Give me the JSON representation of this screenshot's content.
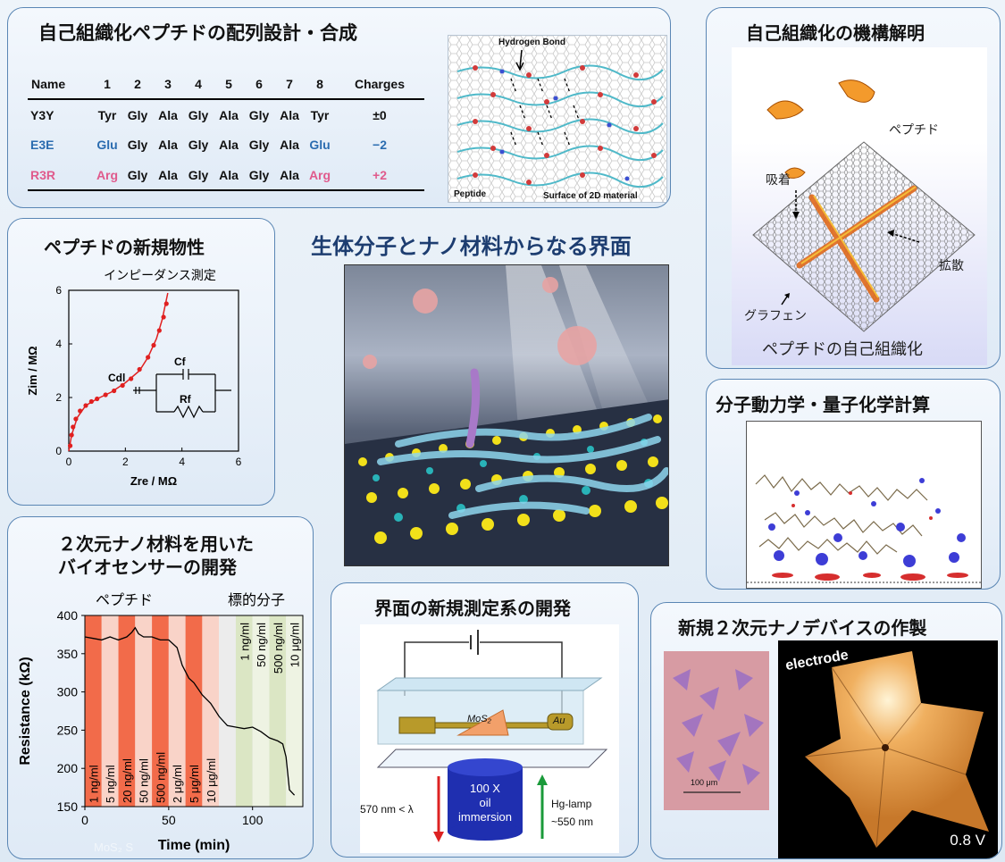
{
  "center_title": "生体分子とナノ材料からなる界面",
  "panel_synthesis": {
    "title": "自己組織化ペプチドの配列設計・合成",
    "table": {
      "headers": [
        "Name",
        "1",
        "2",
        "3",
        "4",
        "5",
        "6",
        "7",
        "8",
        "Charges"
      ],
      "rows": [
        {
          "name": "Y3Y",
          "seq": [
            "Tyr",
            "Gly",
            "Ala",
            "Gly",
            "Ala",
            "Gly",
            "Ala",
            "Tyr"
          ],
          "charge": "±0",
          "color": "#111111"
        },
        {
          "name": "E3E",
          "seq": [
            "Glu",
            "Gly",
            "Ala",
            "Gly",
            "Ala",
            "Gly",
            "Ala",
            "Glu"
          ],
          "charge": "−2",
          "color": "#2b6cb0"
        },
        {
          "name": "R3R",
          "seq": [
            "Arg",
            "Gly",
            "Ala",
            "Gly",
            "Ala",
            "Gly",
            "Ala",
            "Arg"
          ],
          "charge": "+2",
          "color": "#e05a8c"
        }
      ]
    },
    "image_labels": {
      "hbond": "Hydrogen Bond",
      "peptide": "Peptide",
      "surface": "Surface of 2D material"
    }
  },
  "panel_mechanism": {
    "title": "自己組織化の機構解明",
    "labels": {
      "peptide": "ペプチド",
      "adsorption": "吸着",
      "diffusion": "拡散",
      "graphene": "グラフェン",
      "caption": "ペプチドの自己組織化"
    }
  },
  "panel_properties": {
    "title": "ペプチドの新規物性",
    "chart_title": "インピーダンス測定",
    "circuit_labels": {
      "cf": "Cf",
      "cdl": "Cdl",
      "rf": "Rf"
    }
  },
  "panel_md": {
    "title": "分子動力学・量子化学計算"
  },
  "panel_biosensor": {
    "title_line1": "２次元ナノ材料を用いた",
    "title_line2": "バイオセンサーの開発",
    "header_peptide": "ペプチド",
    "header_target": "標的分子",
    "watermark": "MoS₂ S"
  },
  "panel_measure": {
    "title": "界面の新規測定系の開発",
    "labels": {
      "mos2": "MoS₂",
      "au": "Au",
      "objective": "100 X\noil\nimmersion",
      "obj1": "100 X",
      "obj2": "oil",
      "obj3": "immersion",
      "left_arrow": "570 nm < λ",
      "right_arrow1": "Hg-lamp",
      "right_arrow2": "~550 nm"
    }
  },
  "panel_device": {
    "title": "新規２次元ナノデバイスの作製",
    "scale_bar": "100 μm",
    "electrode": "electrode",
    "voltage": "0.8 V"
  },
  "chart_data": [
    {
      "type": "scatter",
      "title": "インピーダンス測定",
      "xlabel": "Zre / MΩ",
      "ylabel": "Zim / MΩ",
      "xlim": [
        0,
        6
      ],
      "ylim": [
        0,
        6
      ],
      "xticks": [
        "0",
        "2",
        "4",
        "6"
      ],
      "yticks": [
        "0",
        "2",
        "4",
        "6"
      ],
      "series": [
        {
          "kind": "points",
          "x": [
            0.05,
            0.1,
            0.15,
            0.25,
            0.4,
            0.6,
            0.8,
            1.0,
            1.3,
            1.6,
            1.9,
            2.2,
            2.5,
            2.8,
            3.0,
            3.2,
            3.35,
            3.45
          ],
          "y": [
            0.2,
            0.6,
            0.9,
            1.2,
            1.5,
            1.7,
            1.85,
            1.95,
            2.1,
            2.25,
            2.45,
            2.7,
            3.05,
            3.5,
            3.95,
            4.5,
            5.0,
            5.5
          ]
        },
        {
          "kind": "fit",
          "x": [
            0,
            0.1,
            0.3,
            0.6,
            1.0,
            1.5,
            2.0,
            2.5,
            2.8,
            3.1,
            3.3,
            3.5
          ],
          "y": [
            0,
            0.6,
            1.25,
            1.7,
            1.95,
            2.2,
            2.55,
            3.0,
            3.5,
            4.2,
            4.9,
            5.9
          ]
        }
      ]
    },
    {
      "type": "line",
      "xlabel": "Time (min)",
      "ylabel": "Resistance (kΩ)",
      "xlim": [
        0,
        130
      ],
      "ylim": [
        150,
        400
      ],
      "xticks": [
        0,
        50,
        100
      ],
      "yticks": [
        150,
        200,
        250,
        300,
        350,
        400
      ],
      "bands": [
        {
          "x0": 0,
          "x1": 10,
          "label": "1 ng/ml",
          "color": "#f26b4a"
        },
        {
          "x0": 10,
          "x1": 20,
          "label": "5 ng/ml",
          "color": "#f9d3c8"
        },
        {
          "x0": 20,
          "x1": 30,
          "label": "20 ng/ml",
          "color": "#f26b4a"
        },
        {
          "x0": 30,
          "x1": 40,
          "label": "50 ng/ml",
          "color": "#f9d3c8"
        },
        {
          "x0": 40,
          "x1": 50,
          "label": "500 ng/ml",
          "color": "#f26b4a"
        },
        {
          "x0": 50,
          "x1": 60,
          "label": "2 μg/ml",
          "color": "#f9d3c8"
        },
        {
          "x0": 60,
          "x1": 70,
          "label": "5 μg/ml",
          "color": "#f26b4a"
        },
        {
          "x0": 70,
          "x1": 80,
          "label": "10 μg/ml",
          "color": "#f9d3c8"
        },
        {
          "x0": 80,
          "x1": 90,
          "label": "",
          "color": "#ececec"
        },
        {
          "x0": 90,
          "x1": 100,
          "label": "1 ng/ml",
          "color": "#dbe6c4"
        },
        {
          "x0": 100,
          "x1": 110,
          "label": "50 ng/ml",
          "color": "#eef3e3"
        },
        {
          "x0": 110,
          "x1": 120,
          "label": "500 ng/ml",
          "color": "#dbe6c4"
        },
        {
          "x0": 120,
          "x1": 130,
          "label": "10 μg/ml",
          "color": "#eef3e3"
        }
      ],
      "series": [
        {
          "x": [
            0,
            5,
            10,
            15,
            20,
            25,
            28,
            30,
            32,
            35,
            40,
            45,
            50,
            55,
            58,
            62,
            65,
            70,
            75,
            80,
            85,
            90,
            95,
            100,
            105,
            110,
            115,
            118,
            120,
            122,
            125
          ],
          "y": [
            372,
            370,
            368,
            372,
            368,
            372,
            378,
            384,
            376,
            372,
            372,
            368,
            368,
            358,
            335,
            318,
            312,
            296,
            285,
            268,
            256,
            254,
            252,
            254,
            248,
            240,
            236,
            232,
            215,
            172,
            165
          ]
        }
      ]
    }
  ]
}
